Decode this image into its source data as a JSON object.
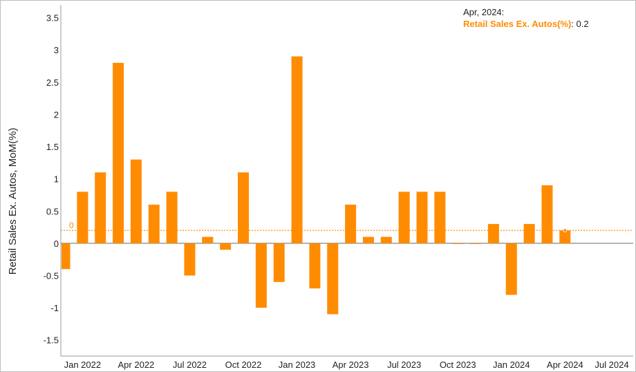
{
  "chart_data": {
    "type": "bar",
    "ylabel": "Retail Sales Ex. Autos, MoM(%)",
    "ylim": [
      -1.75,
      3.7
    ],
    "y_ticks": [
      "3.5",
      "3",
      "2.5",
      "2",
      "1.5",
      "1",
      "0.5",
      "0",
      "-0.5",
      "-1",
      "-1.5"
    ],
    "x_ticks": [
      "Jan 2022",
      "Apr 2022",
      "Jul 2022",
      "Oct 2022",
      "Jan 2023",
      "Apr 2023",
      "Jul 2023",
      "Oct 2023",
      "Jan 2024",
      "Apr 2024",
      "Jul 2024"
    ],
    "bar_color": "#ff8c00",
    "reference_line": {
      "value": 0.2,
      "label": "0"
    },
    "series": [
      {
        "name": "Retail Sales Ex. Autos(%)",
        "categories": [
          "Dec 2021",
          "Jan 2022",
          "Feb 2022",
          "Mar 2022",
          "Apr 2022",
          "May 2022",
          "Jun 2022",
          "Jul 2022",
          "Aug 2022",
          "Sep 2022",
          "Oct 2022",
          "Nov 2022",
          "Dec 2022",
          "Jan 2023",
          "Feb 2023",
          "Mar 2023",
          "Apr 2023",
          "May 2023",
          "Jun 2023",
          "Jul 2023",
          "Aug 2023",
          "Sep 2023",
          "Oct 2023",
          "Nov 2023",
          "Dec 2023",
          "Jan 2024",
          "Feb 2024",
          "Mar 2024",
          "Apr 2024"
        ],
        "values": [
          -0.4,
          0.8,
          1.1,
          2.8,
          1.3,
          0.6,
          0.8,
          -0.5,
          0.1,
          -0.1,
          1.1,
          -1.0,
          -0.6,
          2.9,
          -0.7,
          -1.1,
          0.6,
          0.1,
          0.1,
          0.8,
          0.8,
          0.8,
          0.0,
          0.0,
          0.3,
          -0.8,
          0.3,
          0.9,
          0.2
        ]
      }
    ],
    "grid": false
  },
  "tooltip": {
    "date": "Apr, 2024:",
    "series_label": "Retail Sales Ex. Autos(%)",
    "value_text": ": 0.2"
  }
}
